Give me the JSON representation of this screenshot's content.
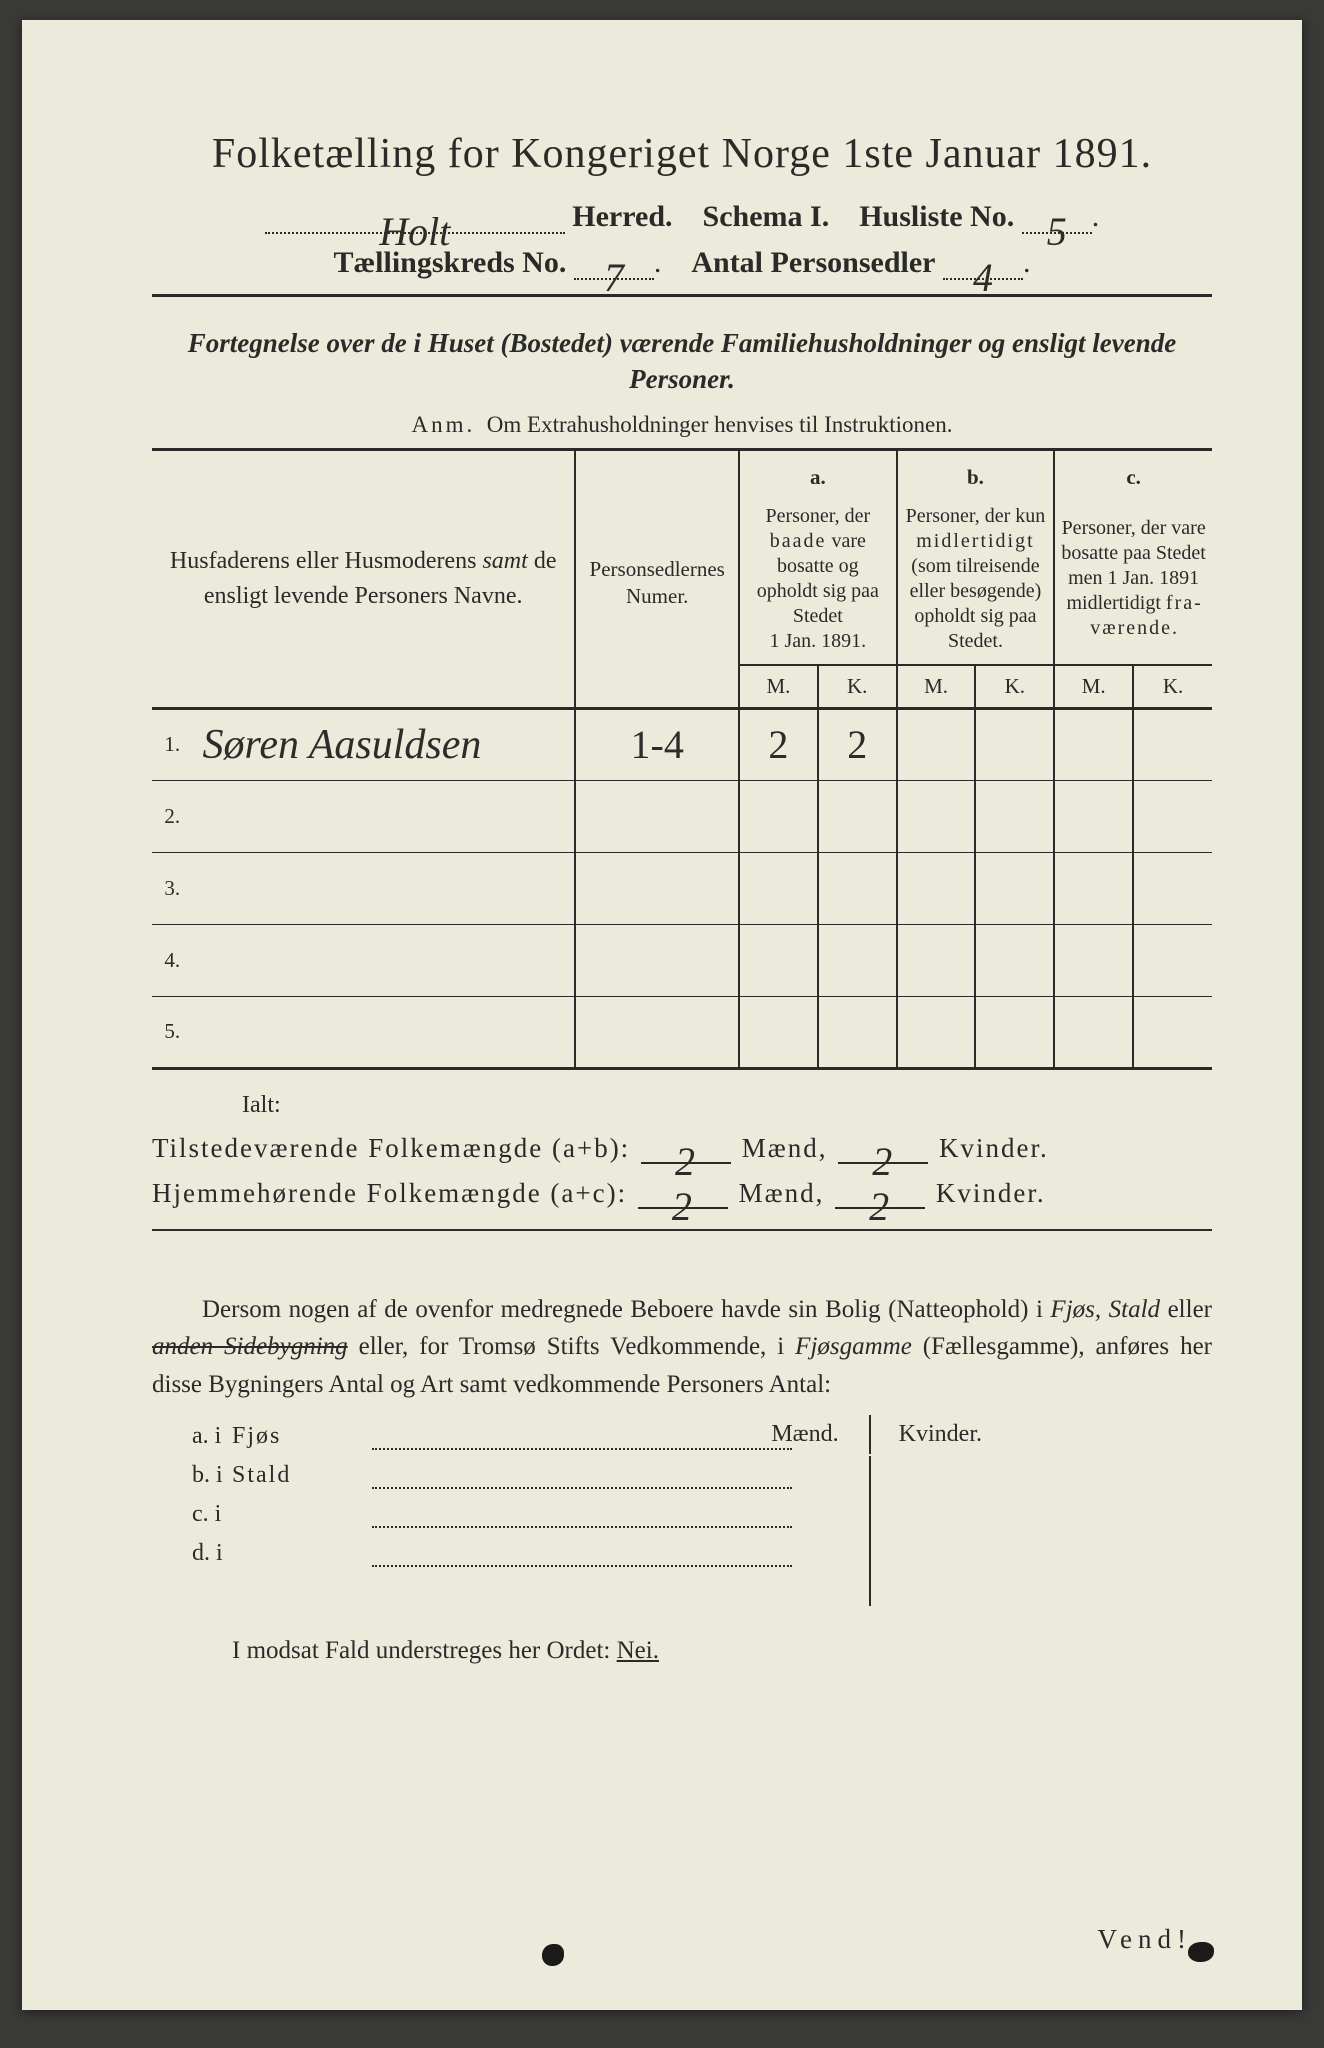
{
  "colors": {
    "paper": "#ebeadb",
    "ink": "#2a2a28",
    "background": "#3a3a38",
    "handwriting": "#2c2c2a"
  },
  "title": "Folketælling for Kongeriget Norge 1ste Januar 1891.",
  "herred_label": "Herred.",
  "herred_value": "Holt",
  "schema_label": "Schema I.",
  "husliste_label": "Husliste No.",
  "husliste_value": "5",
  "kreds_label": "Tællingskreds No.",
  "kreds_value": "7",
  "antal_label": "Antal Personsedler",
  "antal_value": "4",
  "subtitle": "Fortegnelse over de i Huset (Bostedet) værende Familiehusholdninger og ensligt levende Personer.",
  "anm_label": "Anm.",
  "anm_text": "Om Extrahusholdninger henvises til Instruktionen.",
  "headers": {
    "names": "Husfaderens eller Husmoderens samt de ensligt levende Personers Navne.",
    "numer": "Personsedlernes Numer.",
    "a_label": "a.",
    "a_text": "Personer, der baade vare bosatte og opholdt sig paa Stedet 1 Jan. 1891.",
    "b_label": "b.",
    "b_text": "Personer, der kun midlertidigt (som tilreisende eller besøgende) opholdt sig paa Stedet.",
    "c_label": "c.",
    "c_text": "Personer, der vare bosatte paa Stedet men 1 Jan. 1891 midlertidigt fraværende.",
    "m": "M.",
    "k": "K."
  },
  "rows": [
    {
      "n": "1.",
      "name": "Søren Aasuldsen",
      "numer": "1-4",
      "a_m": "2",
      "a_k": "2",
      "b_m": "",
      "b_k": "",
      "c_m": "",
      "c_k": ""
    },
    {
      "n": "2.",
      "name": "",
      "numer": "",
      "a_m": "",
      "a_k": "",
      "b_m": "",
      "b_k": "",
      "c_m": "",
      "c_k": ""
    },
    {
      "n": "3.",
      "name": "",
      "numer": "",
      "a_m": "",
      "a_k": "",
      "b_m": "",
      "b_k": "",
      "c_m": "",
      "c_k": ""
    },
    {
      "n": "4.",
      "name": "",
      "numer": "",
      "a_m": "",
      "a_k": "",
      "b_m": "",
      "b_k": "",
      "c_m": "",
      "c_k": ""
    },
    {
      "n": "5.",
      "name": "",
      "numer": "",
      "a_m": "",
      "a_k": "",
      "b_m": "",
      "b_k": "",
      "c_m": "",
      "c_k": ""
    }
  ],
  "ialt": "Ialt:",
  "sum1_label": "Tilstedeværende Folkemængde (a+b):",
  "sum2_label": "Hjemmehørende Folkemængde (a+c):",
  "maend": "Mænd,",
  "kvinder": "Kvinder.",
  "sum1_m": "2",
  "sum1_k": "2",
  "sum2_m": "2",
  "sum2_k": "2",
  "para_text": "Dersom nogen af de ovenfor medregnede Beboere havde sin Bolig (Natteophold) i Fjøs, Stald eller anden Sidebygning eller, for Tromsø Stifts Vedkommende, i Fjøsgamme (Fællesgamme), anføres her disse Bygningers Antal og Art samt vedkommende Personers Antal:",
  "mk_maend": "Mænd.",
  "mk_kvinder": "Kvinder.",
  "byg": [
    {
      "l": "a.  i",
      "t": "Fjøs"
    },
    {
      "l": "b.  i",
      "t": "Stald"
    },
    {
      "l": "c.  i",
      "t": ""
    },
    {
      "l": "d.  i",
      "t": ""
    }
  ],
  "nei_text": "I modsat Fald understreges her Ordet:",
  "nei_word": "Nei.",
  "vend": "Vend!"
}
